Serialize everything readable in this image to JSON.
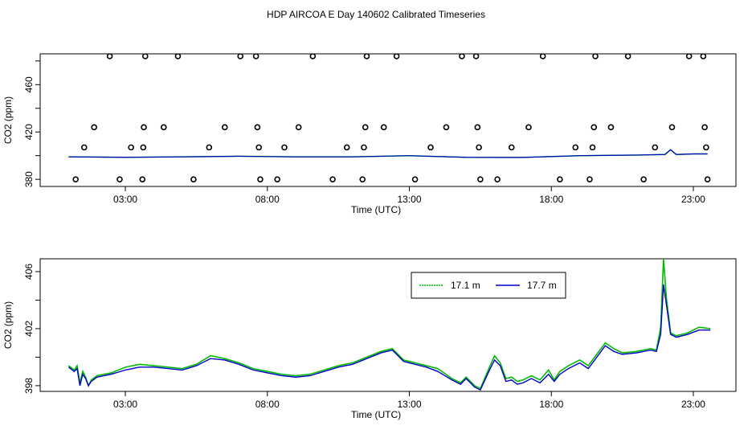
{
  "figure": {
    "title": "HDP AIRCOA E  Day 140602  Calibrated Timeseries"
  },
  "colors": {
    "green": "#00bb00",
    "blue": "#0000cc",
    "axis": "#000000"
  },
  "chart_data": [
    {
      "type": "scatter",
      "title": "",
      "xlabel": "Time (UTC)",
      "ylabel": "CO2 (ppm)",
      "x_ticks": [
        3,
        8,
        13,
        18,
        23
      ],
      "x_tick_labels": [
        "03:00",
        "08:00",
        "13:00",
        "18:00",
        "23:00"
      ],
      "y_ticks": [
        380,
        420,
        460
      ],
      "xlim": [
        0.0,
        24.5
      ],
      "ylim": [
        374,
        486
      ],
      "points": [
        [
          1.25,
          380
        ],
        [
          1.55,
          407
        ],
        [
          1.9,
          424
        ],
        [
          2.45,
          484
        ],
        [
          2.8,
          380
        ],
        [
          3.2,
          407
        ],
        [
          3.6,
          380
        ],
        [
          3.63,
          407
        ],
        [
          3.65,
          424
        ],
        [
          3.7,
          484
        ],
        [
          4.35,
          424
        ],
        [
          4.85,
          484
        ],
        [
          5.4,
          380
        ],
        [
          5.95,
          407
        ],
        [
          6.5,
          424
        ],
        [
          7.05,
          484
        ],
        [
          7.6,
          484
        ],
        [
          7.65,
          424
        ],
        [
          7.7,
          407
        ],
        [
          7.75,
          380
        ],
        [
          8.35,
          380
        ],
        [
          8.6,
          407
        ],
        [
          9.1,
          424
        ],
        [
          9.6,
          484
        ],
        [
          10.3,
          380
        ],
        [
          10.8,
          407
        ],
        [
          11.35,
          380
        ],
        [
          11.4,
          407
        ],
        [
          11.45,
          424
        ],
        [
          11.5,
          484
        ],
        [
          12.1,
          424
        ],
        [
          12.55,
          484
        ],
        [
          13.2,
          380
        ],
        [
          13.75,
          407
        ],
        [
          14.3,
          424
        ],
        [
          14.85,
          484
        ],
        [
          15.35,
          484
        ],
        [
          15.4,
          424
        ],
        [
          15.45,
          407
        ],
        [
          15.5,
          380
        ],
        [
          16.1,
          380
        ],
        [
          16.6,
          407
        ],
        [
          17.2,
          424
        ],
        [
          17.7,
          484
        ],
        [
          18.3,
          380
        ],
        [
          18.85,
          407
        ],
        [
          19.35,
          380
        ],
        [
          19.45,
          407
        ],
        [
          19.5,
          424
        ],
        [
          19.55,
          484
        ],
        [
          20.1,
          424
        ],
        [
          20.7,
          484
        ],
        [
          21.25,
          380
        ],
        [
          21.65,
          407
        ],
        [
          22.25,
          424
        ],
        [
          22.85,
          484
        ],
        [
          23.35,
          484
        ],
        [
          23.4,
          424
        ],
        [
          23.45,
          407
        ],
        [
          23.5,
          380
        ]
      ],
      "series": [
        {
          "x": [
            1,
            3,
            5,
            7,
            9,
            11,
            13,
            15,
            17,
            19,
            21,
            22,
            22.2,
            22.4,
            23,
            23.5
          ],
          "values": [
            399,
            398.6,
            399,
            399.5,
            399,
            399,
            400,
            398.6,
            398.5,
            400,
            400.5,
            401,
            405,
            401,
            401.5,
            401.5
          ]
        }
      ]
    },
    {
      "type": "line",
      "title": "",
      "xlabel": "Time (UTC)",
      "ylabel": "CO2 (ppm)",
      "x_ticks": [
        3,
        8,
        13,
        18,
        23
      ],
      "x_tick_labels": [
        "03:00",
        "08:00",
        "13:00",
        "18:00",
        "23:00"
      ],
      "y_ticks": [
        398,
        402,
        406
      ],
      "xlim": [
        0.0,
        24.5
      ],
      "ylim": [
        397.6,
        406.9
      ],
      "legend": "top-center",
      "x": [
        1.0,
        1.2,
        1.3,
        1.4,
        1.5,
        1.6,
        1.7,
        1.8,
        2.0,
        2.5,
        3.0,
        3.5,
        4.0,
        4.5,
        5.0,
        5.5,
        6.0,
        6.5,
        7.0,
        7.5,
        8.0,
        8.5,
        9.0,
        9.5,
        10.0,
        10.5,
        11.0,
        11.5,
        12.0,
        12.4,
        12.8,
        13.2,
        13.6,
        14.0,
        14.5,
        14.8,
        15.0,
        15.3,
        15.5,
        15.8,
        16.0,
        16.2,
        16.4,
        16.6,
        16.8,
        17.0,
        17.3,
        17.6,
        17.9,
        18.1,
        18.3,
        18.6,
        19.0,
        19.3,
        19.6,
        19.9,
        20.2,
        20.5,
        21.0,
        21.5,
        21.7,
        21.85,
        21.95,
        22.05,
        22.2,
        22.4,
        22.8,
        23.2,
        23.6
      ],
      "series": [
        {
          "name": "17.1 m",
          "values": [
            399.4,
            399.1,
            399.4,
            398.2,
            399.0,
            398.6,
            398.0,
            398.4,
            398.7,
            398.9,
            399.3,
            399.5,
            399.4,
            399.3,
            399.2,
            399.5,
            400.1,
            399.9,
            399.6,
            399.2,
            399.0,
            398.8,
            398.7,
            398.8,
            399.1,
            399.4,
            399.6,
            400.0,
            400.4,
            400.6,
            399.8,
            399.6,
            399.4,
            399.2,
            398.5,
            398.2,
            398.6,
            398.0,
            397.8,
            399.2,
            400.1,
            399.6,
            398.5,
            398.6,
            398.3,
            398.4,
            398.7,
            398.4,
            399.1,
            398.4,
            399.0,
            399.4,
            399.8,
            399.4,
            400.2,
            401.0,
            400.6,
            400.3,
            400.4,
            400.6,
            400.5,
            402.1,
            406.9,
            404.2,
            401.7,
            401.5,
            401.7,
            402.1,
            402.0
          ]
        },
        {
          "name": "17.7 m",
          "values": [
            399.3,
            399.0,
            399.2,
            398.0,
            398.8,
            398.5,
            398.0,
            398.3,
            398.6,
            398.8,
            399.1,
            399.3,
            399.3,
            399.2,
            399.1,
            399.4,
            399.9,
            399.8,
            399.5,
            399.1,
            398.9,
            398.7,
            398.6,
            398.7,
            399.0,
            399.3,
            399.5,
            399.9,
            400.3,
            400.5,
            399.7,
            399.5,
            399.3,
            399.0,
            398.4,
            398.1,
            398.5,
            397.9,
            397.7,
            399.0,
            399.8,
            399.4,
            398.3,
            398.4,
            398.1,
            398.2,
            398.5,
            398.2,
            398.8,
            398.3,
            398.8,
            399.2,
            399.6,
            399.2,
            400.0,
            400.8,
            400.4,
            400.2,
            400.3,
            400.5,
            400.4,
            401.6,
            405.1,
            403.7,
            401.6,
            401.4,
            401.6,
            401.9,
            401.9
          ]
        }
      ]
    }
  ]
}
